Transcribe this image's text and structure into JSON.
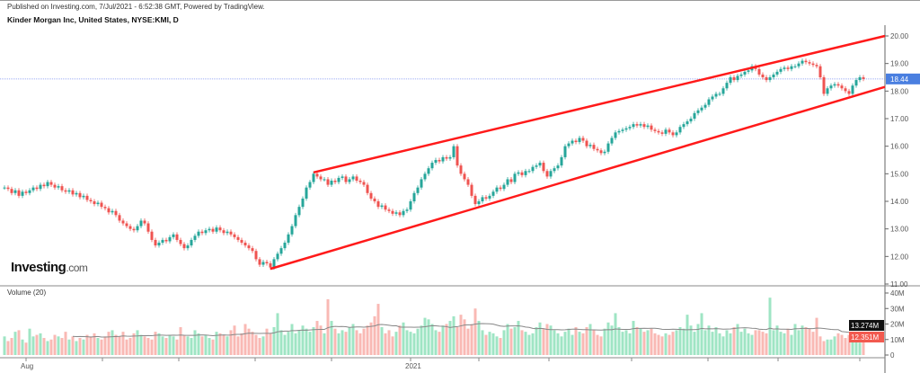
{
  "header": {
    "published": "Published on Investing.com, 7/Jul/2021 - 6:52:38 GMT, Powered by TradingView.",
    "title": "Kinder Morgan Inc, United States, NYSE:KMI, D"
  },
  "logo": {
    "brand": "Investing",
    "suffix": ".com"
  },
  "volume_label": "Volume (20)",
  "colors": {
    "up": "#26a69a",
    "down": "#ef5350",
    "vol_up": "#9fe5c4",
    "vol_down": "#f9b9b4",
    "trendline": "#ff1a1a",
    "price_tag": "#4a7fe0",
    "ma_line": "#888888"
  },
  "chart_data": {
    "type": "candlestick",
    "interval": "D",
    "price_axis": {
      "ylim": [
        11,
        20
      ],
      "ticks": [
        "20.00",
        "19.00",
        "18.00",
        "17.00",
        "16.00",
        "15.00",
        "14.00",
        "13.00",
        "12.00",
        "11.00"
      ]
    },
    "last_price": "18.44",
    "x_ticks": [
      "Aug",
      "",
      "",
      "",
      "",
      "2021",
      "",
      "",
      "",
      "",
      "",
      ""
    ],
    "closes": [
      14.5,
      14.45,
      14.3,
      14.4,
      14.2,
      14.35,
      14.3,
      14.4,
      14.5,
      14.45,
      14.6,
      14.55,
      14.7,
      14.6,
      14.5,
      14.55,
      14.4,
      14.35,
      14.4,
      14.25,
      14.3,
      14.15,
      14.2,
      14.05,
      14.0,
      13.9,
      13.95,
      13.8,
      13.75,
      13.6,
      13.65,
      13.5,
      13.3,
      13.2,
      13.1,
      13.0,
      12.95,
      13.1,
      13.3,
      13.2,
      12.9,
      12.6,
      12.4,
      12.5,
      12.6,
      12.55,
      12.7,
      12.8,
      12.6,
      12.45,
      12.3,
      12.4,
      12.6,
      12.75,
      12.9,
      12.85,
      12.95,
      13.0,
      12.9,
      13.05,
      12.95,
      12.85,
      12.9,
      12.8,
      12.7,
      12.6,
      12.5,
      12.4,
      12.3,
      12.2,
      11.9,
      11.7,
      11.8,
      11.75,
      11.6,
      11.9,
      12.1,
      12.3,
      12.5,
      12.8,
      13.1,
      13.5,
      13.8,
      14.1,
      14.5,
      14.7,
      15.0,
      14.9,
      14.8,
      14.8,
      14.6,
      14.75,
      14.7,
      14.85,
      14.9,
      14.7,
      14.8,
      14.9,
      14.75,
      14.7,
      14.6,
      14.3,
      14.1,
      14.0,
      13.8,
      13.85,
      13.7,
      13.65,
      13.55,
      13.6,
      13.5,
      13.65,
      13.7,
      14.0,
      14.3,
      14.5,
      14.8,
      15.0,
      15.2,
      15.4,
      15.5,
      15.45,
      15.6,
      15.55,
      15.6,
      16.0,
      15.3,
      15.0,
      14.8,
      14.6,
      14.2,
      13.9,
      14.0,
      14.15,
      14.1,
      14.2,
      14.35,
      14.5,
      14.45,
      14.6,
      14.8,
      14.7,
      15.0,
      15.05,
      14.95,
      15.1,
      15.1,
      15.25,
      15.3,
      15.4,
      15.1,
      14.9,
      15.1,
      15.2,
      15.3,
      15.6,
      16.0,
      16.1,
      16.2,
      16.15,
      16.3,
      16.2,
      16.0,
      16.05,
      15.9,
      15.85,
      15.75,
      15.8,
      16.1,
      16.3,
      16.5,
      16.55,
      16.6,
      16.65,
      16.7,
      16.8,
      16.75,
      16.8,
      16.7,
      16.75,
      16.6,
      16.55,
      16.5,
      16.45,
      16.6,
      16.5,
      16.4,
      16.5,
      16.7,
      16.8,
      16.9,
      17.0,
      17.2,
      17.3,
      17.4,
      17.5,
      17.7,
      17.8,
      17.9,
      17.9,
      18.1,
      18.3,
      18.5,
      18.4,
      18.55,
      18.6,
      18.7,
      18.75,
      18.9,
      18.8,
      18.6,
      18.5,
      18.4,
      18.5,
      18.6,
      18.7,
      18.8,
      18.85,
      18.8,
      18.9,
      18.9,
      19.0,
      19.1,
      19.05,
      19.0,
      18.95,
      18.9,
      18.5,
      17.9,
      18.1,
      18.2,
      18.25,
      18.2,
      18.1,
      18.0,
      17.9,
      18.2,
      18.4,
      18.5,
      18.44
    ],
    "volume": {
      "name": "Volume (20)",
      "ylim": [
        0,
        40
      ],
      "unit": "M",
      "ticks": [
        "40M",
        "30M",
        "20M",
        "10M",
        "0"
      ],
      "ma_label": "13.274M",
      "last_label": "12.351M",
      "values": [
        12,
        9,
        11,
        15,
        16,
        10,
        8,
        17,
        12,
        13,
        14,
        11,
        9,
        10,
        13,
        12,
        11,
        15,
        10,
        12,
        9,
        11,
        10,
        13,
        12,
        14,
        11,
        10,
        12,
        15,
        16,
        13,
        12,
        15,
        10,
        11,
        14,
        16,
        13,
        12,
        11,
        10,
        15,
        14,
        12,
        11,
        13,
        12,
        10,
        18,
        13,
        12,
        11,
        16,
        14,
        12,
        13,
        11,
        10,
        15,
        14,
        13,
        12,
        16,
        19,
        12,
        14,
        20,
        17,
        15,
        13,
        11,
        12,
        17,
        14,
        18,
        27,
        16,
        13,
        15,
        20,
        14,
        16,
        19,
        17,
        15,
        18,
        22,
        19,
        14,
        36,
        22,
        17,
        14,
        16,
        15,
        18,
        20,
        16,
        14,
        17,
        19,
        21,
        25,
        33,
        18,
        14,
        16,
        12,
        15,
        19,
        21,
        16,
        15,
        14,
        17,
        19,
        24,
        23,
        20,
        16,
        15,
        19,
        20,
        22,
        25,
        18,
        26,
        23,
        17,
        20,
        30,
        22,
        16,
        13,
        15,
        14,
        12,
        11,
        16,
        20,
        17,
        18,
        22,
        16,
        15,
        13,
        14,
        18,
        21,
        17,
        20,
        19,
        16,
        14,
        12,
        15,
        17,
        13,
        18,
        15,
        14,
        18,
        20,
        16,
        13,
        12,
        17,
        21,
        19,
        27,
        18,
        15,
        16,
        14,
        22,
        18,
        17,
        15,
        16,
        17,
        14,
        13,
        12,
        14,
        13,
        15,
        16,
        18,
        17,
        26,
        19,
        15,
        20,
        27,
        16,
        19,
        15,
        18,
        14,
        12,
        16,
        14,
        18,
        20,
        15,
        17,
        14,
        13,
        16,
        16,
        15,
        14,
        37,
        16,
        19,
        15,
        14,
        17,
        13,
        20,
        16,
        19,
        18,
        17,
        15,
        24,
        12,
        9,
        10,
        10,
        12,
        14,
        13,
        11,
        13,
        15,
        9,
        8,
        12.351
      ]
    },
    "trendlines": [
      {
        "name": "upper channel",
        "from": {
          "bar": 86,
          "price": 15.05
        },
        "to": {
          "bar": 245,
          "price": 20.0
        }
      },
      {
        "name": "lower channel",
        "from": {
          "bar": 74,
          "price": 11.55
        },
        "to": {
          "bar": 245,
          "price": 18.15
        }
      }
    ]
  }
}
